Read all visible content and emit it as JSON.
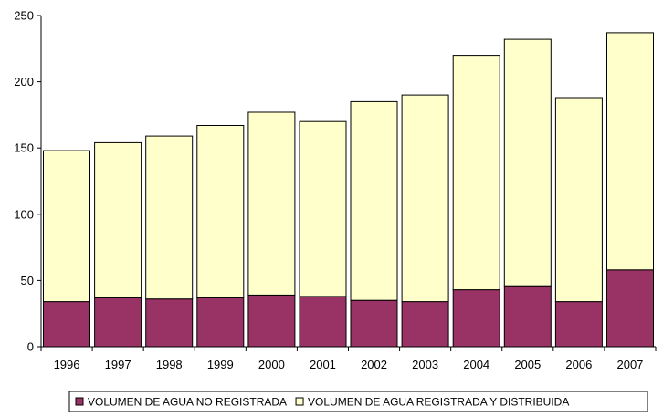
{
  "chart_data": {
    "type": "bar",
    "stacked": true,
    "categories": [
      "1996",
      "1997",
      "1998",
      "1999",
      "2000",
      "2001",
      "2002",
      "2003",
      "2004",
      "2005",
      "2006",
      "2007"
    ],
    "series": [
      {
        "name": "VOLUMEN DE AGUA NO REGISTRADA",
        "color": "#993366",
        "values": [
          34,
          37,
          36,
          37,
          39,
          38,
          35,
          34,
          43,
          46,
          34,
          58
        ]
      },
      {
        "name": "VOLUMEN DE AGUA REGISTRADA Y DISTRIBUIDA",
        "color": "#FFFFCC",
        "values": [
          114,
          117,
          123,
          130,
          138,
          132,
          150,
          156,
          177,
          186,
          154,
          179
        ]
      }
    ],
    "yticks": [
      "0",
      "50",
      "100",
      "150",
      "200",
      "250"
    ],
    "ylim": [
      0,
      250
    ],
    "grid": false,
    "legend_position": "bottom",
    "title": "",
    "xlabel": "",
    "ylabel": ""
  }
}
